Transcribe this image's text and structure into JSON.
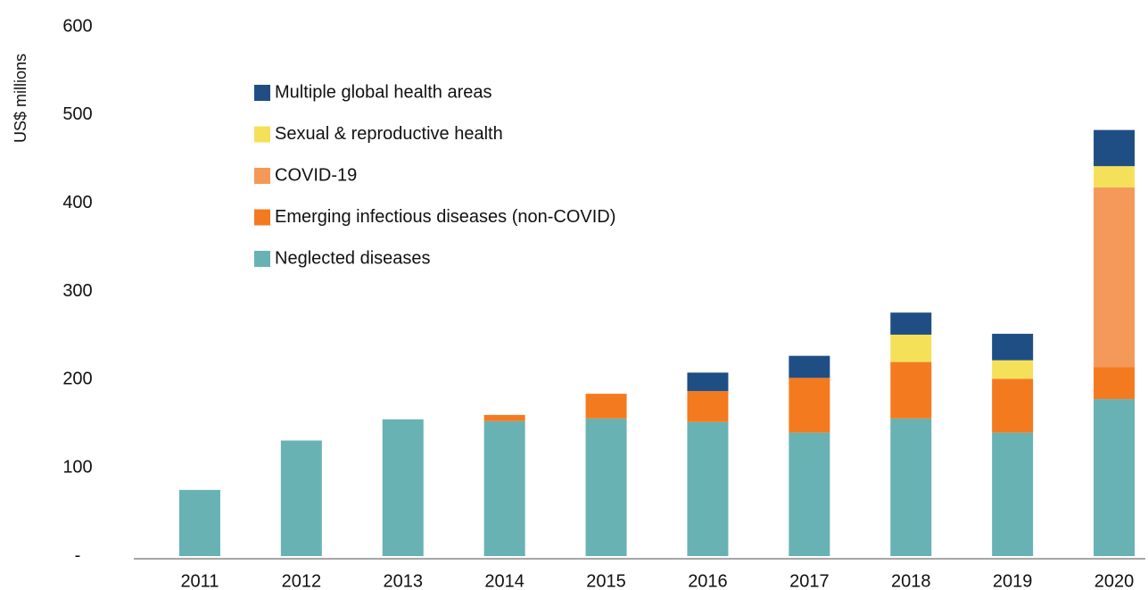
{
  "chart_data": {
    "type": "stacked_bar",
    "y_label": "US$ millions",
    "categories": [
      "2011",
      "2012",
      "2013",
      "2014",
      "2015",
      "2016",
      "2017",
      "2018",
      "2019",
      "2020"
    ],
    "series": [
      {
        "name": "Neglected diseases",
        "color": "#68b2b4",
        "values": [
          75,
          131,
          155,
          153,
          156,
          152,
          140,
          156,
          140,
          178
        ]
      },
      {
        "name": "Emerging infectious diseases (non-COVID)",
        "color": "#f47a20",
        "values": [
          0,
          0,
          0,
          7,
          28,
          35,
          62,
          64,
          61,
          36
        ]
      },
      {
        "name": "COVID-19",
        "color": "#f4995a",
        "values": [
          0,
          0,
          0,
          0,
          0,
          0,
          0,
          0,
          0,
          204
        ]
      },
      {
        "name": "Sexual & reproductive health",
        "color": "#f5e05a",
        "values": [
          0,
          0,
          0,
          0,
          0,
          0,
          0,
          31,
          21,
          24
        ]
      },
      {
        "name": "Multiple global health areas",
        "color": "#1f4e84",
        "values": [
          0,
          0,
          0,
          0,
          0,
          21,
          25,
          25,
          30,
          41
        ]
      }
    ],
    "ylim": [
      0,
      600
    ],
    "yticks": [
      {
        "value": 0,
        "label": "-"
      },
      100,
      200,
      300,
      400,
      500,
      600
    ],
    "grid": false
  }
}
